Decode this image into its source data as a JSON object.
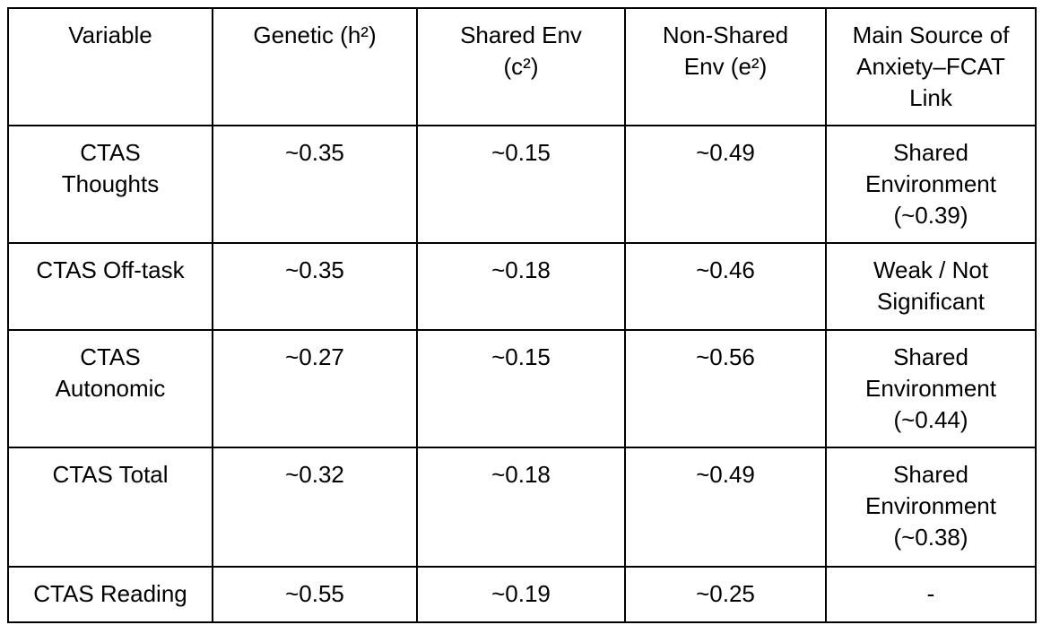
{
  "table": {
    "headers": [
      "Variable",
      "Genetic (h²)",
      "Shared Env\n(c²)",
      "Non-Shared\nEnv (e²)",
      "Main Source of\nAnxiety–FCAT\nLink"
    ],
    "rows": [
      {
        "cells": [
          "CTAS\nThoughts",
          "~0.35",
          "~0.15",
          "~0.49",
          "Shared\nEnvironment\n(~0.39)"
        ]
      },
      {
        "cells": [
          "CTAS Off-task",
          "~0.35",
          "~0.18",
          "~0.46",
          "Weak / Not\nSignificant"
        ]
      },
      {
        "cells": [
          "CTAS\nAutonomic",
          "~0.27",
          "~0.15",
          "~0.56",
          "Shared\nEnvironment\n(~0.44)"
        ]
      },
      {
        "cells": [
          "CTAS Total",
          "~0.32",
          "~0.18",
          "~0.49",
          "Shared\nEnvironment\n(~0.38)"
        ]
      },
      {
        "cells": [
          "CTAS Reading",
          "~0.55",
          "~0.19",
          "~0.25",
          "-"
        ]
      }
    ]
  },
  "chart_data": {
    "type": "table",
    "columns": [
      "Variable",
      "Genetic (h²)",
      "Shared Env (c²)",
      "Non-Shared Env (e²)",
      "Main Source of Anxiety–FCAT Link"
    ],
    "rows": [
      [
        "CTAS Thoughts",
        "~0.35",
        "~0.15",
        "~0.49",
        "Shared Environment (~0.39)"
      ],
      [
        "CTAS Off-task",
        "~0.35",
        "~0.18",
        "~0.46",
        "Weak / Not Significant"
      ],
      [
        "CTAS Autonomic",
        "~0.27",
        "~0.15",
        "~0.56",
        "Shared Environment (~0.44)"
      ],
      [
        "CTAS Total",
        "~0.32",
        "~0.18",
        "~0.49",
        "Shared Environment (~0.38)"
      ],
      [
        "CTAS Reading",
        "~0.55",
        "~0.19",
        "~0.25",
        "-"
      ]
    ]
  },
  "colors": {
    "border": "#000000",
    "text": "#000000",
    "background": "#ffffff"
  }
}
